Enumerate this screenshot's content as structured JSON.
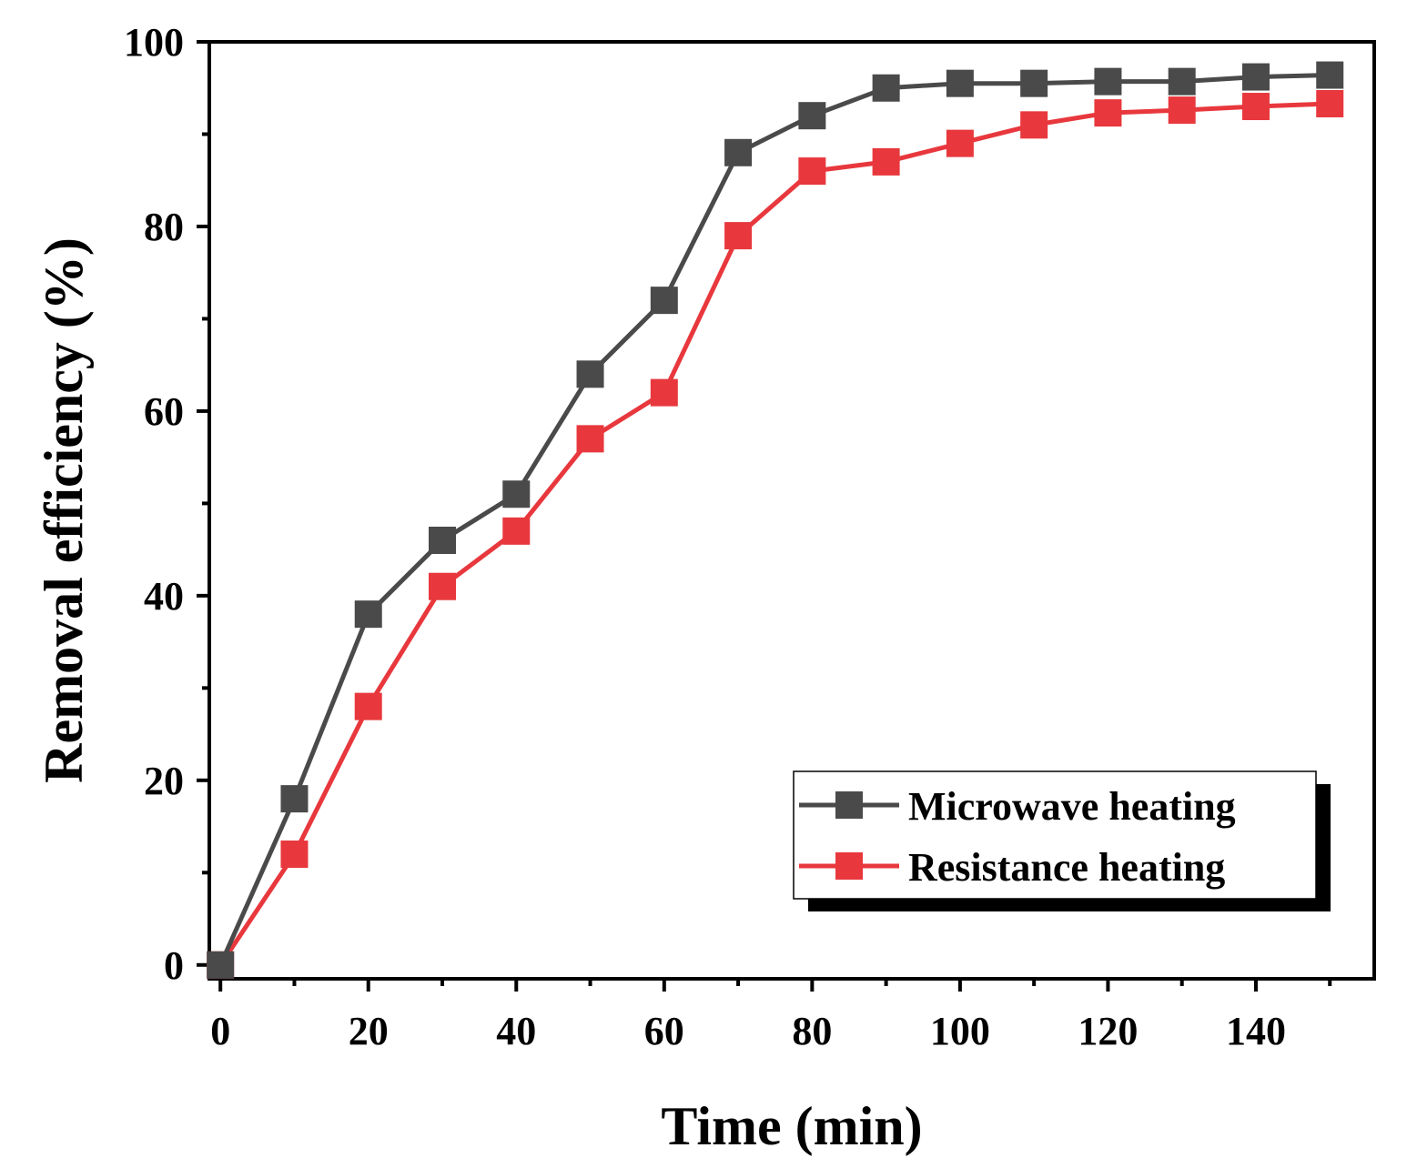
{
  "chart_data": {
    "type": "line",
    "title": "",
    "xlabel": "Time (min)",
    "ylabel": "Removal efficiency (%)",
    "xlim": [
      -1.5,
      156
    ],
    "ylim": [
      -1.5,
      100
    ],
    "x_ticks": [
      0,
      20,
      40,
      60,
      80,
      100,
      120,
      140
    ],
    "y_ticks": [
      0,
      20,
      40,
      60,
      80,
      100
    ],
    "x_tick_labels": [
      "0",
      "20",
      "40",
      "60",
      "80",
      "100",
      "120",
      "140"
    ],
    "y_tick_labels": [
      "0",
      "20",
      "40",
      "60",
      "80",
      "100"
    ],
    "x": [
      0,
      10,
      20,
      30,
      40,
      50,
      60,
      70,
      80,
      90,
      100,
      110,
      120,
      130,
      140,
      150
    ],
    "series": [
      {
        "name": "Microwave heating",
        "color": "#4a4a4a",
        "marker": "square",
        "values": [
          0,
          18,
          38,
          46,
          51,
          64,
          72,
          88,
          92,
          95,
          95.5,
          95.5,
          95.7,
          95.7,
          96.2,
          96.4
        ]
      },
      {
        "name": "Resistance heating",
        "color": "#e8383d",
        "marker": "square",
        "values": [
          0,
          12,
          28,
          41,
          47,
          57,
          62,
          79,
          86,
          87,
          89,
          91,
          92.3,
          92.6,
          93,
          93.3
        ]
      }
    ],
    "legend": {
      "position": "lower-right",
      "entries": [
        "Microwave heating",
        "Resistance heating"
      ]
    },
    "grid": false
  }
}
